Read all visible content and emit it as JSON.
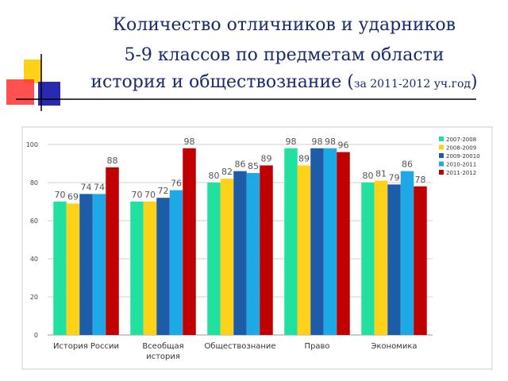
{
  "chart_data": {
    "type": "bar",
    "title_lines": [
      "Количество отличников и ударников",
      "5-9 классов по предметам области",
      "история и обществознание ("
    ],
    "title_note": "за 2011-2012 уч.год",
    "title_end": ")",
    "categories": [
      "История России",
      "Всеобщая\nистория",
      "Обществознание",
      "Право",
      "Экономика"
    ],
    "series": [
      {
        "name": "2007-2008",
        "color": "#22e0a0",
        "values": [
          70,
          70,
          80,
          98,
          80
        ]
      },
      {
        "name": "2008-2009",
        "color": "#ffd21a",
        "values": [
          69,
          70,
          82,
          89,
          81
        ]
      },
      {
        "name": "2009-20010",
        "color": "#1f5ca8",
        "values": [
          74,
          72,
          86,
          98,
          79
        ]
      },
      {
        "name": "2010-2011",
        "color": "#1ea8e6",
        "values": [
          74,
          76,
          85,
          98,
          86
        ]
      },
      {
        "name": "2011-2012",
        "color": "#c00000",
        "values": [
          88,
          98,
          89,
          96,
          78
        ]
      }
    ],
    "ylim": [
      0,
      105
    ],
    "yticks": [
      0,
      20,
      40,
      60,
      80,
      100
    ],
    "grid": true,
    "legend": "right"
  }
}
